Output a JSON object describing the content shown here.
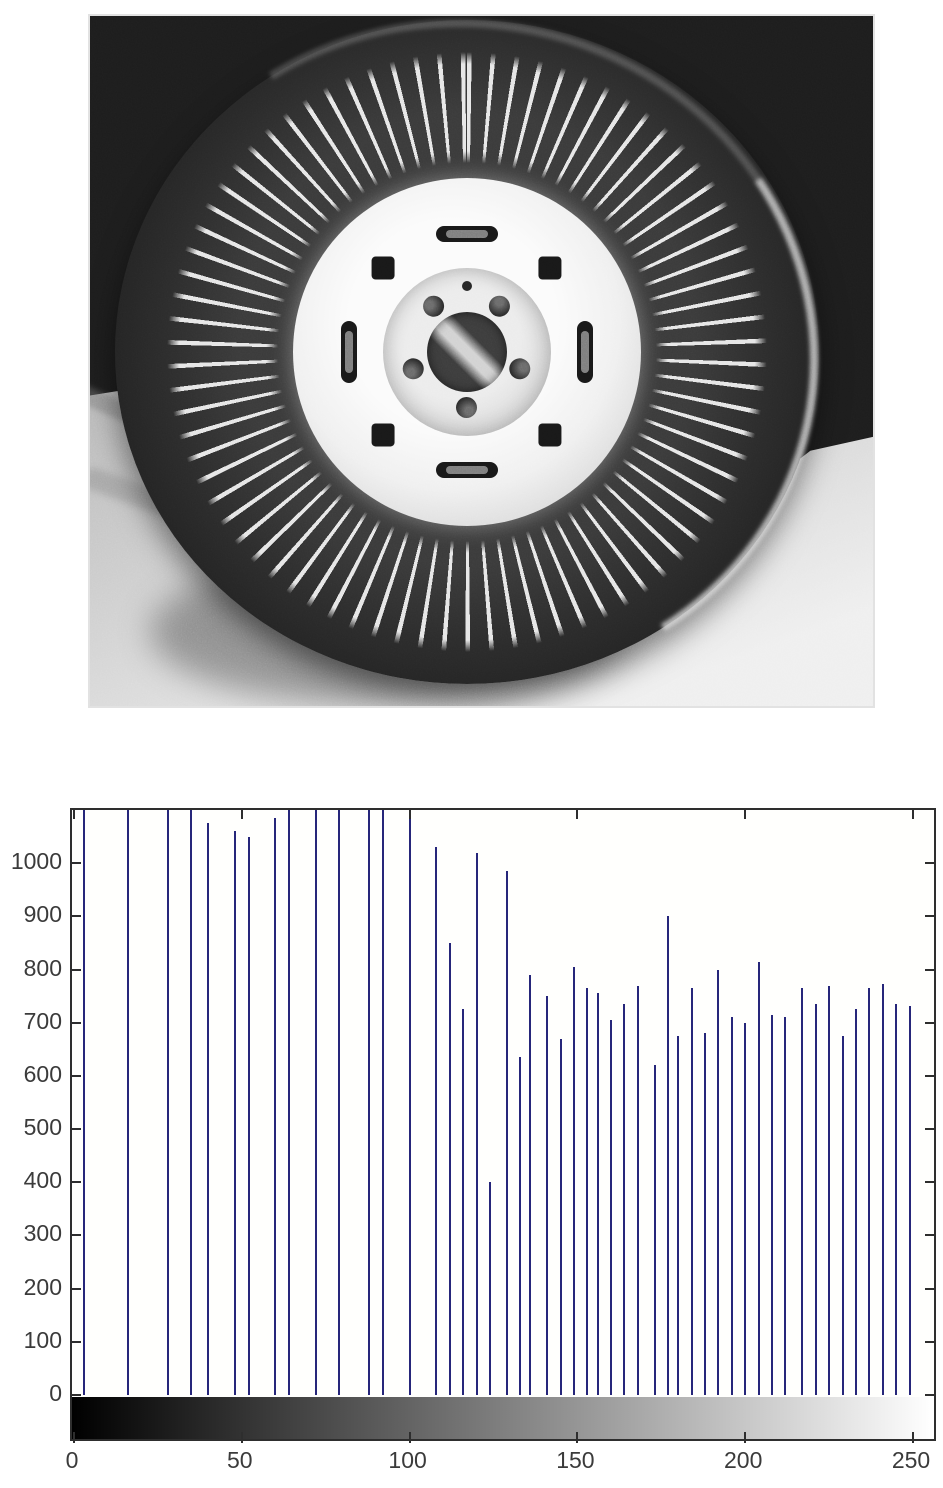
{
  "figure": {
    "photo": {
      "description": "High-contrast grayscale photograph of a car wheel and tire standing in snow; bright steel rim with five lug nuts and dark center cap, dark knobby tire rimmed by frost spikes, snowy ground below",
      "palette": {
        "background": "#1d1d1d",
        "rim": "#f2f2f2",
        "snow": "#e9e9e9",
        "tire": "#2b2b2b"
      }
    },
    "colors": {
      "bar": "#26267a",
      "axis": "#2e2e2e",
      "label": "#3b3b3b",
      "colorbar_from": "#000000",
      "colorbar_to": "#ffffff"
    }
  },
  "chart_data": {
    "type": "bar",
    "subtype": "intensity-histogram-stem",
    "title": "",
    "xlabel": "",
    "ylabel": "",
    "xlim": [
      0,
      255
    ],
    "ylim": [
      0,
      1100
    ],
    "grid": false,
    "legend": false,
    "xticks": [
      0,
      50,
      100,
      150,
      200,
      250
    ],
    "yticks": [
      0,
      100,
      200,
      300,
      400,
      500,
      600,
      700,
      800,
      900,
      1000
    ],
    "colorbar": {
      "type": "grayscale-gradient",
      "from": 0,
      "to": 255
    },
    "bars": [
      [
        3,
        1100
      ],
      [
        16,
        1100
      ],
      [
        28,
        1100
      ],
      [
        35,
        1100
      ],
      [
        40,
        1075
      ],
      [
        48,
        1060
      ],
      [
        52,
        1050
      ],
      [
        60,
        1085
      ],
      [
        64,
        1100
      ],
      [
        72,
        1100
      ],
      [
        79,
        1100
      ],
      [
        88,
        1100
      ],
      [
        92,
        1100
      ],
      [
        100,
        1100
      ],
      [
        108,
        1030
      ],
      [
        112,
        850
      ],
      [
        116,
        725
      ],
      [
        120,
        1020
      ],
      [
        124,
        400
      ],
      [
        129,
        985
      ],
      [
        133,
        635
      ],
      [
        136,
        790
      ],
      [
        141,
        750
      ],
      [
        145,
        670
      ],
      [
        149,
        805
      ],
      [
        153,
        765
      ],
      [
        156,
        755
      ],
      [
        160,
        705
      ],
      [
        164,
        735
      ],
      [
        168,
        770
      ],
      [
        173,
        620
      ],
      [
        177,
        900
      ],
      [
        180,
        675
      ],
      [
        184,
        765
      ],
      [
        188,
        680
      ],
      [
        192,
        800
      ],
      [
        196,
        710
      ],
      [
        200,
        700
      ],
      [
        204,
        815
      ],
      [
        208,
        715
      ],
      [
        212,
        710
      ],
      [
        217,
        765
      ],
      [
        221,
        735
      ],
      [
        225,
        770
      ],
      [
        229,
        675
      ],
      [
        233,
        725
      ],
      [
        237,
        765
      ],
      [
        241,
        772
      ],
      [
        245,
        735
      ],
      [
        249,
        732
      ]
    ]
  }
}
